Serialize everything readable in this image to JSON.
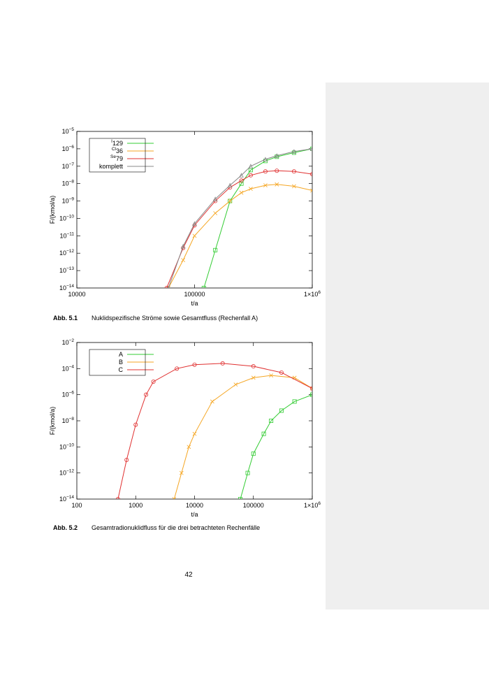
{
  "figures": [
    {
      "chart_data": {
        "type": "line",
        "log_x": true,
        "log_y": true,
        "legend": "top-left",
        "xlabel": "t/a",
        "ylabel": "F/(kmol/a)",
        "xlim": [
          10000,
          1000000
        ],
        "ylim": [
          1e-14,
          1e-05
        ],
        "xticks": [
          10000,
          100000,
          {
            "value": 1000000,
            "label": "1×106"
          }
        ],
        "yticks": [
          {
            "value": 1e-14,
            "label": "10−14"
          },
          {
            "value": 1e-13,
            "label": "10−13"
          },
          {
            "value": 1e-12,
            "label": "10−12"
          },
          {
            "value": 1e-11,
            "label": "10−11"
          },
          {
            "value": 1e-10,
            "label": "10−10"
          },
          {
            "value": 1e-09,
            "label": "10−9"
          },
          {
            "value": 1e-08,
            "label": "10−8"
          },
          {
            "value": 1e-07,
            "label": "10−7"
          },
          {
            "value": 1e-06,
            "label": "10−6"
          },
          {
            "value": 1e-05,
            "label": "10−5"
          }
        ],
        "series": [
          {
            "name": "129I",
            "color": "#33cc33",
            "marker": "square",
            "x": [
              120000,
              150000,
              200000,
              250000,
              300000,
              400000,
              500000,
              700000,
              1000000
            ],
            "values": [
              1e-14,
              1.5e-12,
              1e-09,
              1e-08,
              6e-08,
              2e-07,
              3.5e-07,
              6e-07,
              1e-06
            ]
          },
          {
            "name": "36Cl",
            "color": "#f5a623",
            "marker": "cross",
            "x": [
              60000,
              80000,
              100000,
              150000,
              200000,
              250000,
              300000,
              400000,
              500000,
              700000,
              1000000
            ],
            "values": [
              1e-14,
              4e-13,
              1e-11,
              2e-10,
              1e-09,
              3e-09,
              5e-09,
              8e-09,
              9e-09,
              7e-09,
              4e-09
            ]
          },
          {
            "name": "79Se",
            "color": "#e03030",
            "marker": "circle",
            "x": [
              58000,
              80000,
              100000,
              150000,
              200000,
              250000,
              300000,
              400000,
              500000,
              700000,
              1000000
            ],
            "values": [
              1e-14,
              2e-12,
              4e-11,
              1e-09,
              6e-09,
              1.5e-08,
              3e-08,
              5e-08,
              5.5e-08,
              5e-08,
              3.5e-08
            ]
          },
          {
            "name": "komplett",
            "color": "#888888",
            "marker": "triangle",
            "x": [
              60000,
              80000,
              100000,
              150000,
              200000,
              250000,
              300000,
              400000,
              500000,
              700000,
              1000000
            ],
            "values": [
              1e-14,
              2.5e-12,
              5e-11,
              1.3e-09,
              8e-09,
              3e-08,
              1e-07,
              2.5e-07,
              4e-07,
              7e-07,
              1e-06
            ]
          }
        ]
      },
      "caption": {
        "label": "Abb. 5.1",
        "text": "Nuklidspezifische Ströme sowie Gesamtfluss (Rechenfall A)"
      }
    },
    {
      "chart_data": {
        "type": "line",
        "log_x": true,
        "log_y": true,
        "legend": "top-left",
        "xlabel": "t/a",
        "ylabel": "F/(kmol/a)",
        "xlim": [
          100,
          1000000
        ],
        "ylim": [
          1e-14,
          0.01
        ],
        "xticks": [
          100,
          1000,
          10000,
          100000,
          {
            "value": 1000000,
            "label": "1×106"
          }
        ],
        "yticks": [
          {
            "value": 1e-14,
            "label": "10−14"
          },
          {
            "value": 1e-12,
            "label": "10−12"
          },
          {
            "value": 1e-10,
            "label": "10−10"
          },
          {
            "value": 1e-08,
            "label": "10−8"
          },
          {
            "value": 1e-06,
            "label": "10−6"
          },
          {
            "value": 0.0001,
            "label": "10−4"
          },
          {
            "value": 0.01,
            "label": "10−2"
          }
        ],
        "series": [
          {
            "name": "A",
            "color": "#33cc33",
            "marker": "square",
            "x": [
              60000,
              80000,
              100000,
              150000,
              200000,
              300000,
              500000,
              1000000
            ],
            "values": [
              1e-14,
              1e-12,
              3e-11,
              1e-09,
              1e-08,
              6e-08,
              3e-07,
              1e-06
            ]
          },
          {
            "name": "B",
            "color": "#f5a623",
            "marker": "cross",
            "x": [
              4500,
              6000,
              8000,
              10000,
              20000,
              50000,
              100000,
              200000,
              500000,
              1000000
            ],
            "values": [
              1e-14,
              1e-12,
              1e-10,
              1e-09,
              3e-07,
              6e-06,
              2e-05,
              3e-05,
              2e-05,
              3e-06
            ]
          },
          {
            "name": "C",
            "color": "#e03030",
            "marker": "circle",
            "x": [
              500,
              700,
              1000,
              1500,
              2000,
              5000,
              10000,
              30000,
              100000,
              300000,
              1000000
            ],
            "values": [
              1e-14,
              1e-11,
              5e-09,
              1e-06,
              1e-05,
              0.0001,
              0.0002,
              0.00025,
              0.00015,
              5e-05,
              3e-06
            ]
          }
        ]
      },
      "caption": {
        "label": "Abb. 5.2",
        "text": "Gesamtradionuklidfluss für die drei betrachteten Rechenfälle"
      }
    }
  ],
  "page_number": "42"
}
